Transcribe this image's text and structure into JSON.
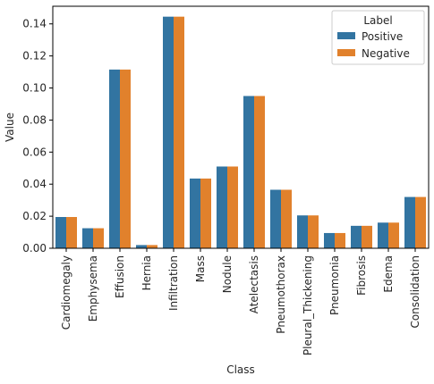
{
  "chart_data": {
    "type": "bar",
    "xlabel": "Class",
    "ylabel": "Value",
    "ylim": [
      0,
      0.151
    ],
    "yticks": [
      "0.00",
      "0.02",
      "0.04",
      "0.06",
      "0.08",
      "0.10",
      "0.12",
      "0.14"
    ],
    "categories": [
      "Cardiomegaly",
      "Emphysema",
      "Effusion",
      "Hernia",
      "Infiltration",
      "Mass",
      "Nodule",
      "Atelectasis",
      "Pneumothorax",
      "Pleural_Thickening",
      "Pneumonia",
      "Fibrosis",
      "Edema",
      "Consolidation"
    ],
    "series": [
      {
        "name": "Positive",
        "color": "#3274a1",
        "values": [
          0.0195,
          0.0125,
          0.1115,
          0.002,
          0.1445,
          0.0435,
          0.051,
          0.095,
          0.0365,
          0.0205,
          0.0095,
          0.014,
          0.016,
          0.032
        ]
      },
      {
        "name": "Negative",
        "color": "#e1812c",
        "values": [
          0.0195,
          0.0125,
          0.1115,
          0.002,
          0.1445,
          0.0435,
          0.051,
          0.095,
          0.0365,
          0.0205,
          0.0095,
          0.014,
          0.016,
          0.032
        ]
      }
    ],
    "legend": {
      "title": "Label",
      "position": "top-right"
    },
    "grid": false
  }
}
